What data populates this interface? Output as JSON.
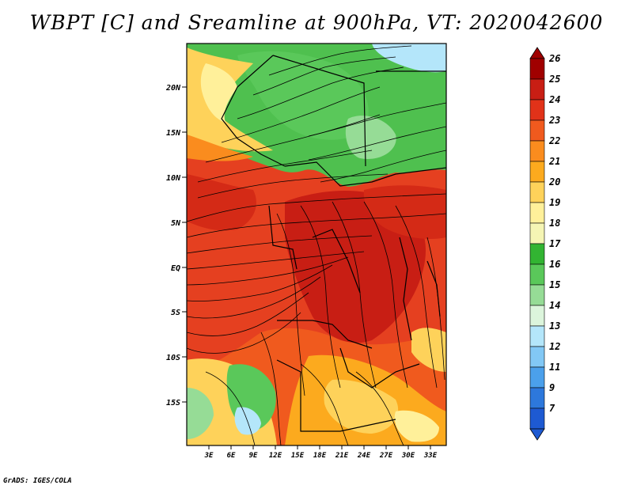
{
  "title": "WBPT [C] and Sreamline at 900hPa, VT: 2020042600",
  "footer": "GrADS: IGES/COLA",
  "map": {
    "region": "Central Africa",
    "lat_range": [
      -20,
      24
    ],
    "lon_range": [
      0,
      35
    ],
    "lat_labels": [
      "20N",
      "15N",
      "10N",
      "5N",
      "EQ",
      "5S",
      "10S",
      "15S"
    ],
    "lon_labels": [
      "3E",
      "6E",
      "9E",
      "12E",
      "15E",
      "18E",
      "21E",
      "24E",
      "27E",
      "30E",
      "33E"
    ],
    "field": "wet-bulb potential temperature (shaded) with streamlines"
  },
  "colorbar": {
    "levels": [
      "26",
      "25",
      "24",
      "23",
      "22",
      "21",
      "20",
      "19",
      "18",
      "17",
      "16",
      "15",
      "14",
      "13",
      "12",
      "11",
      "9",
      "7"
    ],
    "colors": [
      "#a00000",
      "#c81e14",
      "#e13219",
      "#f05a1e",
      "#fa8c1e",
      "#fcaa1e",
      "#fed25a",
      "#fff09a",
      "#f5f5b4",
      "#32b432",
      "#5ac85a",
      "#96dc96",
      "#dcf5dc",
      "#b4e6fa",
      "#82c8f5",
      "#4ba0eb",
      "#2d78dc",
      "#1e5ad2"
    ]
  }
}
